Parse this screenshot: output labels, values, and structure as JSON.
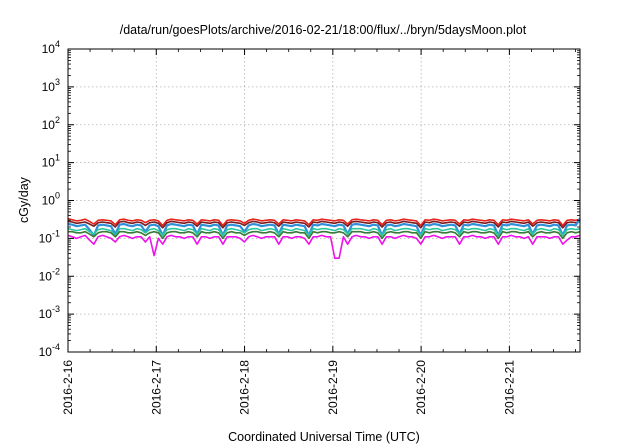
{
  "chart_data": {
    "type": "line",
    "title": "/data/run/goesPlots/archive/2016-02-21/18:00/flux/../bryn/5daysMoon.plot",
    "xlabel": "Coordinated Universal Time (UTC)",
    "ylabel": "cGy/day",
    "y_scale": "log",
    "ylim": [
      0.0001,
      10000
    ],
    "y_ticks": [
      {
        "value": 0.0001,
        "base": "10",
        "exp": "-4"
      },
      {
        "value": 0.001,
        "base": "10",
        "exp": "-3"
      },
      {
        "value": 0.01,
        "base": "10",
        "exp": "-2"
      },
      {
        "value": 0.1,
        "base": "10",
        "exp": "-1"
      },
      {
        "value": 1,
        "base": "10",
        "exp": "0"
      },
      {
        "value": 10,
        "base": "10",
        "exp": "1"
      },
      {
        "value": 100,
        "base": "10",
        "exp": "2"
      },
      {
        "value": 1000,
        "base": "10",
        "exp": "3"
      },
      {
        "value": 10000,
        "base": "10",
        "exp": "4"
      }
    ],
    "x_ticks": [
      "2016-2-16",
      "2016-2-17",
      "2016-2-18",
      "2016-2-19",
      "2016-2-20",
      "2016-2-21"
    ],
    "x_range_days": [
      0,
      5.8
    ],
    "grid": true,
    "legend": "none",
    "series": [
      {
        "color": "#e8231c",
        "level": 0.3,
        "values": [
          0.33,
          0.31,
          0.29,
          0.3,
          0.32,
          0.28,
          0.24,
          0.3,
          0.31,
          0.3,
          0.29,
          0.23,
          0.31,
          0.32,
          0.3,
          0.29,
          0.31,
          0.3,
          0.26,
          0.3,
          0.31,
          0.29,
          0.22,
          0.3,
          0.32,
          0.31,
          0.3,
          0.29,
          0.31,
          0.3,
          0.24,
          0.31,
          0.3,
          0.29,
          0.31,
          0.3,
          0.22,
          0.3,
          0.31,
          0.3,
          0.29,
          0.25,
          0.3,
          0.32,
          0.31,
          0.29,
          0.3,
          0.31,
          0.3,
          0.24,
          0.31,
          0.3,
          0.29,
          0.31,
          0.3,
          0.29,
          0.23,
          0.31,
          0.3,
          0.32,
          0.31,
          0.3,
          0.29,
          0.31,
          0.3,
          0.24,
          0.31,
          0.32,
          0.31,
          0.3,
          0.29,
          0.31,
          0.3,
          0.23,
          0.3,
          0.31,
          0.29,
          0.3,
          0.32,
          0.31,
          0.3,
          0.29,
          0.22,
          0.31,
          0.3,
          0.32,
          0.31,
          0.29,
          0.3,
          0.31,
          0.3,
          0.24,
          0.31,
          0.3,
          0.32,
          0.31,
          0.3,
          0.29,
          0.31,
          0.3,
          0.23,
          0.31,
          0.3,
          0.32,
          0.31,
          0.3,
          0.29,
          0.31,
          0.24,
          0.3,
          0.31,
          0.3,
          0.29,
          0.31,
          0.3,
          0.22,
          0.3,
          0.31,
          0.3,
          0.32
        ]
      },
      {
        "color": "#7a1b20",
        "level": 0.26,
        "values": [
          0.28,
          0.27,
          0.25,
          0.26,
          0.27,
          0.24,
          0.21,
          0.26,
          0.27,
          0.26,
          0.25,
          0.2,
          0.27,
          0.28,
          0.26,
          0.25,
          0.27,
          0.26,
          0.22,
          0.26,
          0.27,
          0.25,
          0.19,
          0.26,
          0.28,
          0.27,
          0.26,
          0.25,
          0.27,
          0.26,
          0.21,
          0.27,
          0.26,
          0.25,
          0.27,
          0.26,
          0.19,
          0.26,
          0.27,
          0.26,
          0.25,
          0.22,
          0.26,
          0.28,
          0.27,
          0.25,
          0.26,
          0.27,
          0.26,
          0.21,
          0.27,
          0.26,
          0.25,
          0.27,
          0.26,
          0.25,
          0.2,
          0.27,
          0.26,
          0.28,
          0.27,
          0.26,
          0.25,
          0.27,
          0.26,
          0.21,
          0.27,
          0.28,
          0.27,
          0.26,
          0.25,
          0.27,
          0.26,
          0.2,
          0.26,
          0.27,
          0.25,
          0.26,
          0.28,
          0.27,
          0.26,
          0.25,
          0.19,
          0.27,
          0.26,
          0.28,
          0.27,
          0.25,
          0.26,
          0.27,
          0.26,
          0.21,
          0.27,
          0.26,
          0.28,
          0.27,
          0.26,
          0.25,
          0.27,
          0.26,
          0.2,
          0.27,
          0.26,
          0.28,
          0.27,
          0.26,
          0.25,
          0.27,
          0.21,
          0.26,
          0.27,
          0.26,
          0.25,
          0.27,
          0.26,
          0.19,
          0.26,
          0.27,
          0.26,
          0.28
        ]
      },
      {
        "color": "#2f8fd8",
        "level": 0.22,
        "values": [
          0.24,
          0.23,
          0.21,
          0.22,
          0.23,
          0.17,
          0.12,
          0.22,
          0.23,
          0.22,
          0.21,
          0.13,
          0.23,
          0.24,
          0.22,
          0.21,
          0.23,
          0.22,
          0.15,
          0.22,
          0.23,
          0.21,
          0.12,
          0.22,
          0.24,
          0.23,
          0.22,
          0.21,
          0.23,
          0.22,
          0.13,
          0.23,
          0.22,
          0.21,
          0.23,
          0.22,
          0.12,
          0.22,
          0.23,
          0.22,
          0.21,
          0.15,
          0.22,
          0.24,
          0.23,
          0.21,
          0.22,
          0.23,
          0.22,
          0.13,
          0.23,
          0.22,
          0.21,
          0.23,
          0.22,
          0.21,
          0.12,
          0.23,
          0.22,
          0.24,
          0.23,
          0.22,
          0.21,
          0.23,
          0.22,
          0.13,
          0.23,
          0.24,
          0.23,
          0.22,
          0.21,
          0.23,
          0.22,
          0.12,
          0.22,
          0.23,
          0.21,
          0.22,
          0.24,
          0.23,
          0.22,
          0.21,
          0.12,
          0.23,
          0.22,
          0.24,
          0.23,
          0.21,
          0.22,
          0.23,
          0.22,
          0.13,
          0.23,
          0.22,
          0.24,
          0.23,
          0.22,
          0.21,
          0.23,
          0.22,
          0.12,
          0.23,
          0.22,
          0.24,
          0.23,
          0.22,
          0.21,
          0.23,
          0.13,
          0.22,
          0.23,
          0.22,
          0.21,
          0.23,
          0.22,
          0.12,
          0.22,
          0.23,
          0.22,
          0.33
        ]
      },
      {
        "color": "#2bc8a0",
        "level": 0.17,
        "values": [
          0.18,
          0.17,
          0.16,
          0.17,
          0.18,
          0.15,
          0.13,
          0.17,
          0.18,
          0.17,
          0.16,
          0.12,
          0.18,
          0.18,
          0.17,
          0.16,
          0.18,
          0.17,
          0.14,
          0.17,
          0.18,
          0.16,
          0.12,
          0.17,
          0.18,
          0.18,
          0.17,
          0.16,
          0.18,
          0.17,
          0.13,
          0.18,
          0.17,
          0.16,
          0.18,
          0.17,
          0.12,
          0.17,
          0.18,
          0.17,
          0.16,
          0.14,
          0.17,
          0.18,
          0.18,
          0.16,
          0.17,
          0.18,
          0.17,
          0.13,
          0.18,
          0.17,
          0.16,
          0.18,
          0.17,
          0.16,
          0.12,
          0.18,
          0.17,
          0.18,
          0.18,
          0.17,
          0.16,
          0.18,
          0.17,
          0.13,
          0.18,
          0.18,
          0.18,
          0.17,
          0.16,
          0.18,
          0.17,
          0.12,
          0.17,
          0.18,
          0.16,
          0.17,
          0.18,
          0.18,
          0.17,
          0.16,
          0.12,
          0.18,
          0.17,
          0.18,
          0.18,
          0.16,
          0.17,
          0.18,
          0.17,
          0.13,
          0.18,
          0.17,
          0.18,
          0.18,
          0.17,
          0.16,
          0.18,
          0.17,
          0.12,
          0.18,
          0.17,
          0.18,
          0.18,
          0.17,
          0.16,
          0.18,
          0.13,
          0.17,
          0.18,
          0.17,
          0.16,
          0.18,
          0.17,
          0.12,
          0.17,
          0.18,
          0.17,
          0.18
        ]
      },
      {
        "color": "#3a7a3a",
        "level": 0.145,
        "values": [
          0.15,
          0.15,
          0.14,
          0.14,
          0.15,
          0.13,
          0.11,
          0.14,
          0.15,
          0.15,
          0.14,
          0.11,
          0.15,
          0.15,
          0.14,
          0.14,
          0.15,
          0.14,
          0.12,
          0.14,
          0.15,
          0.14,
          0.1,
          0.14,
          0.15,
          0.15,
          0.14,
          0.14,
          0.15,
          0.14,
          0.11,
          0.15,
          0.14,
          0.14,
          0.15,
          0.14,
          0.1,
          0.14,
          0.15,
          0.14,
          0.14,
          0.12,
          0.14,
          0.15,
          0.15,
          0.14,
          0.14,
          0.15,
          0.14,
          0.11,
          0.15,
          0.14,
          0.14,
          0.15,
          0.14,
          0.14,
          0.1,
          0.15,
          0.14,
          0.15,
          0.15,
          0.14,
          0.14,
          0.15,
          0.14,
          0.11,
          0.15,
          0.15,
          0.15,
          0.14,
          0.14,
          0.15,
          0.14,
          0.1,
          0.14,
          0.15,
          0.14,
          0.14,
          0.15,
          0.15,
          0.14,
          0.14,
          0.1,
          0.15,
          0.14,
          0.15,
          0.15,
          0.14,
          0.14,
          0.15,
          0.14,
          0.11,
          0.15,
          0.14,
          0.15,
          0.15,
          0.14,
          0.14,
          0.15,
          0.14,
          0.1,
          0.15,
          0.14,
          0.15,
          0.15,
          0.14,
          0.14,
          0.15,
          0.11,
          0.14,
          0.15,
          0.14,
          0.14,
          0.15,
          0.14,
          0.1,
          0.14,
          0.15,
          0.14,
          0.15
        ]
      },
      {
        "color": "#ee12ee",
        "level": 0.11,
        "values": [
          0.12,
          0.11,
          0.1,
          0.11,
          0.12,
          0.09,
          0.07,
          0.11,
          0.12,
          0.11,
          0.1,
          0.08,
          0.11,
          0.12,
          0.11,
          0.1,
          0.11,
          0.11,
          0.08,
          0.11,
          0.035,
          0.1,
          0.07,
          0.11,
          0.12,
          0.11,
          0.11,
          0.1,
          0.11,
          0.11,
          0.07,
          0.11,
          0.11,
          0.1,
          0.11,
          0.11,
          0.07,
          0.11,
          0.11,
          0.11,
          0.1,
          0.08,
          0.11,
          0.12,
          0.11,
          0.1,
          0.11,
          0.11,
          0.11,
          0.07,
          0.11,
          0.11,
          0.1,
          0.11,
          0.11,
          0.1,
          0.07,
          0.11,
          0.11,
          0.12,
          0.11,
          0.11,
          0.03,
          0.03,
          0.11,
          0.07,
          0.11,
          0.12,
          0.11,
          0.11,
          0.1,
          0.11,
          0.11,
          0.07,
          0.11,
          0.11,
          0.1,
          0.11,
          0.12,
          0.11,
          0.11,
          0.1,
          0.07,
          0.11,
          0.11,
          0.12,
          0.11,
          0.1,
          0.11,
          0.11,
          0.11,
          0.07,
          0.11,
          0.11,
          0.12,
          0.11,
          0.11,
          0.1,
          0.11,
          0.11,
          0.07,
          0.11,
          0.11,
          0.12,
          0.11,
          0.11,
          0.1,
          0.11,
          0.07,
          0.11,
          0.11,
          0.11,
          0.1,
          0.11,
          0.11,
          0.07,
          0.09,
          0.11,
          0.11,
          0.12
        ]
      }
    ]
  }
}
